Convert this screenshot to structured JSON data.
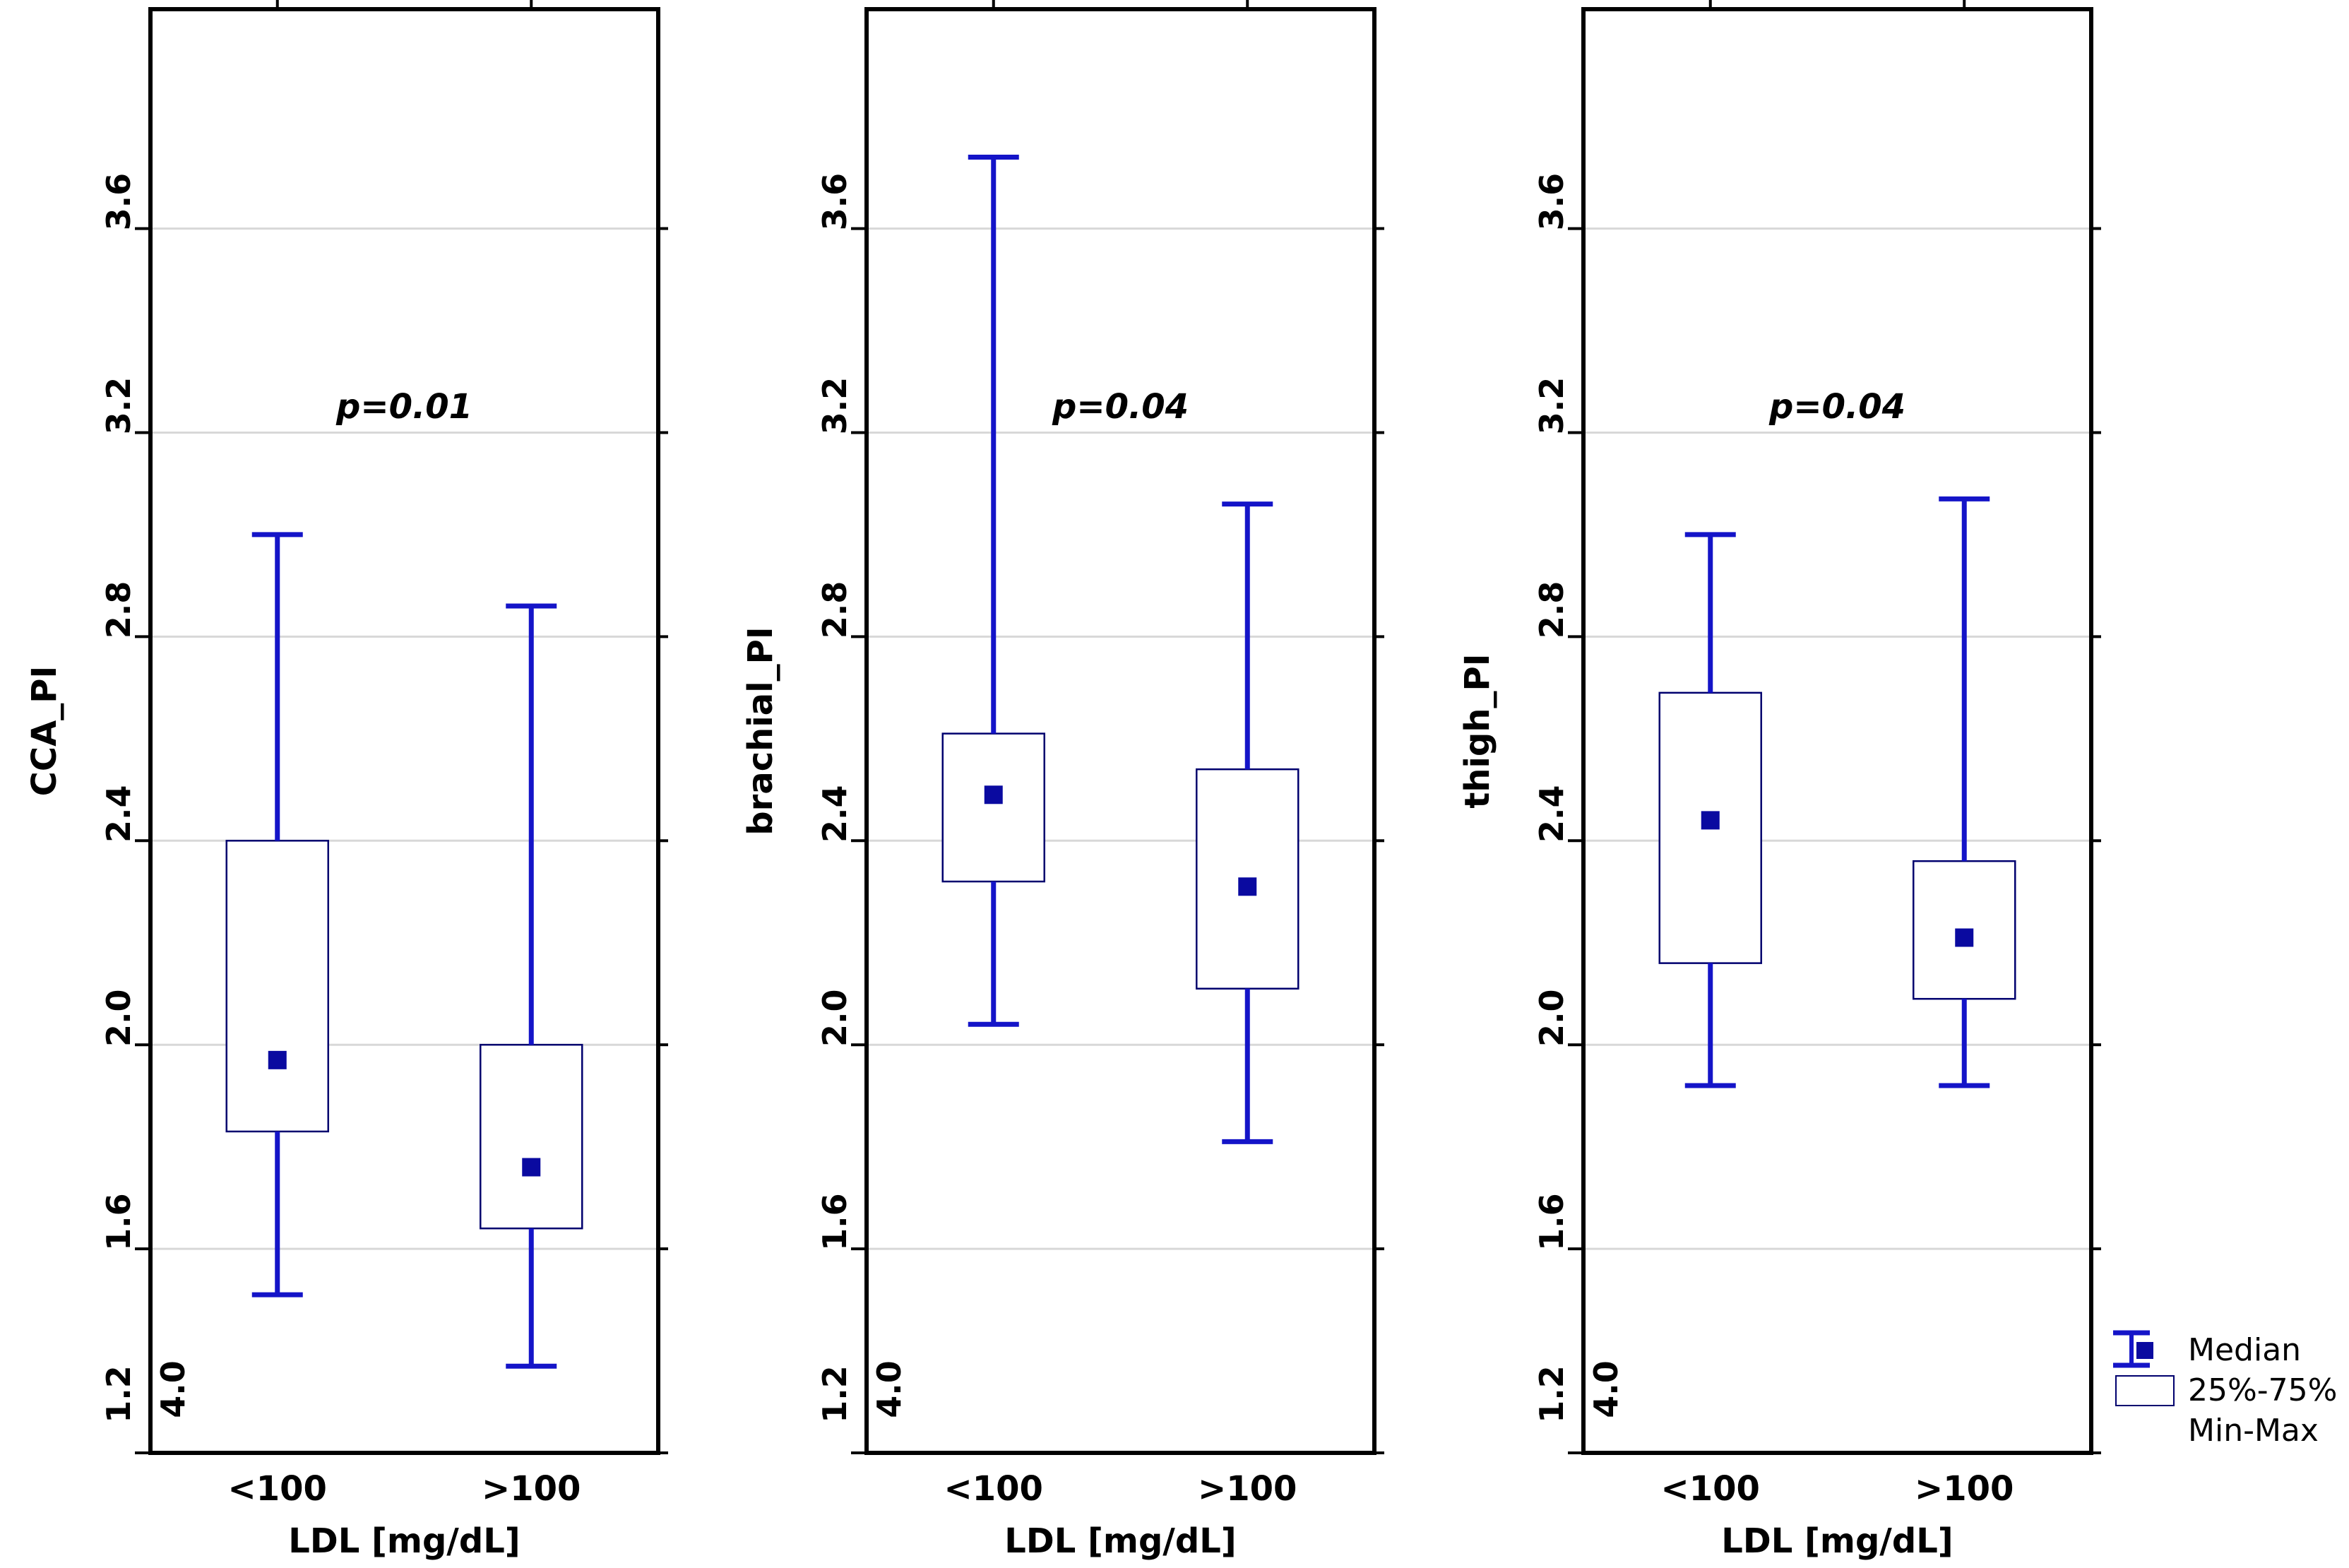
{
  "figure": {
    "background": "#ffffff",
    "colors": {
      "whisker": "#1414c8",
      "box_outline": "#00006e",
      "box_fill": "#ffffff",
      "median": "#0a0aa0",
      "gridline": "#d8d8d8",
      "frame": "#000000",
      "text": "#000000"
    },
    "axis": {
      "ymin": 1.2,
      "ymax": 4.03,
      "yticks": [
        3.6,
        3.2,
        2.8,
        2.4,
        2.0,
        1.6,
        1.2
      ],
      "corner_label": "4.0",
      "grid": true
    },
    "x_axis": {
      "title": "LDL [mg/dL]",
      "categories": [
        "<100",
        ">100"
      ]
    }
  },
  "legend": {
    "items": [
      {
        "icon": "median-square-icon",
        "label": "Median"
      },
      {
        "icon": "iqr-box-icon",
        "label": "25%-75%"
      },
      {
        "icon": "min-max-icon",
        "label": "Min-Max"
      }
    ]
  },
  "chart_data": [
    {
      "type": "box",
      "ylabel": "CCA_PI",
      "xlabel": "LDL [mg/dL]",
      "p_label": "p=0.01",
      "categories": [
        "<100",
        ">100"
      ],
      "ylim": [
        1.2,
        4.03
      ],
      "yticks": [
        1.2,
        1.6,
        2.0,
        2.4,
        2.8,
        3.2,
        3.6
      ],
      "grid": true,
      "stats": [
        {
          "category": "<100",
          "min": 1.51,
          "q1": 1.83,
          "median": 1.97,
          "q3": 2.4,
          "max": 3.0
        },
        {
          "category": ">100",
          "min": 1.37,
          "q1": 1.64,
          "median": 1.76,
          "q3": 2.0,
          "max": 2.86
        }
      ]
    },
    {
      "type": "box",
      "ylabel": "brachial_PI",
      "xlabel": "LDL [mg/dL]",
      "p_label": "p=0.04",
      "categories": [
        "<100",
        ">100"
      ],
      "ylim": [
        1.2,
        4.03
      ],
      "yticks": [
        1.2,
        1.6,
        2.0,
        2.4,
        2.8,
        3.2,
        3.6
      ],
      "grid": true,
      "stats": [
        {
          "category": "<100",
          "min": 2.04,
          "q1": 2.32,
          "median": 2.49,
          "q3": 2.61,
          "max": 3.74
        },
        {
          "category": ">100",
          "min": 1.81,
          "q1": 2.11,
          "median": 2.31,
          "q3": 2.54,
          "max": 3.06
        }
      ]
    },
    {
      "type": "box",
      "ylabel": "thigh_PI",
      "xlabel": "LDL [mg/dL]",
      "p_label": "p=0.04",
      "categories": [
        "<100",
        ">100"
      ],
      "ylim": [
        1.2,
        4.03
      ],
      "yticks": [
        1.2,
        1.6,
        2.0,
        2.4,
        2.8,
        3.2,
        3.6
      ],
      "grid": true,
      "stats": [
        {
          "category": "<100",
          "min": 1.92,
          "q1": 2.16,
          "median": 2.44,
          "q3": 2.69,
          "max": 3.0
        },
        {
          "category": ">100",
          "min": 1.92,
          "q1": 2.09,
          "median": 2.21,
          "q3": 2.36,
          "max": 3.07
        }
      ]
    }
  ]
}
